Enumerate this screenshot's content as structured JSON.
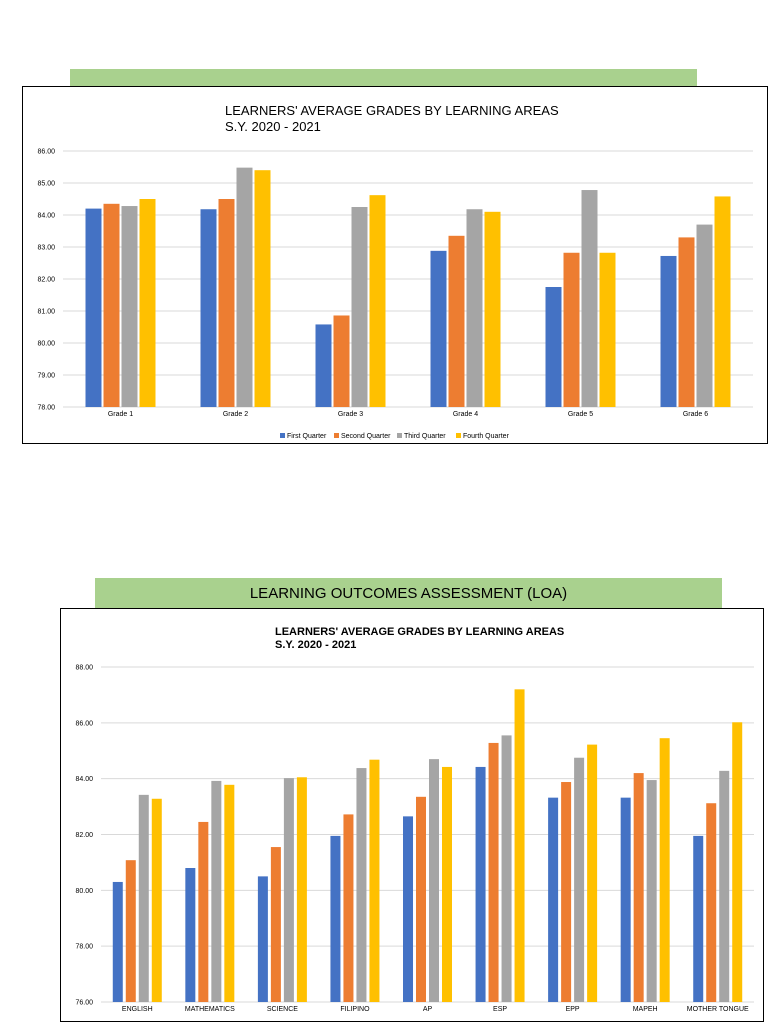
{
  "colors": {
    "first": "#4472c4",
    "second": "#ed7d31",
    "third": "#a5a5a5",
    "fourth": "#ffc000",
    "band": "#a9d18e",
    "grid": "#d9d9d9"
  },
  "section2_header": "LEARNING OUTCOMES ASSESSMENT (LOA)",
  "chart_data": [
    {
      "type": "bar",
      "title": "LEARNERS' AVERAGE GRADES BY LEARNING AREAS",
      "subtitle": "S.Y. 2020 - 2021",
      "categories": [
        "Grade 1",
        "Grade 2",
        "Grade 3",
        "Grade 4",
        "Grade 5",
        "Grade 6"
      ],
      "ylim": [
        78,
        86
      ],
      "yticks": [
        "78.00",
        "79.00",
        "80.00",
        "81.00",
        "82.00",
        "83.00",
        "84.00",
        "85.00",
        "86.00"
      ],
      "grid": true,
      "legend": "bottom",
      "series": [
        {
          "name": "First Quarter",
          "values": [
            84.2,
            84.18,
            80.58,
            82.88,
            81.75,
            82.72
          ]
        },
        {
          "name": "Second Quarter",
          "values": [
            84.35,
            84.5,
            80.86,
            83.35,
            82.82,
            83.3
          ]
        },
        {
          "name": "Third Quarter",
          "values": [
            84.28,
            85.48,
            84.25,
            84.18,
            84.78,
            83.7
          ]
        },
        {
          "name": "Fourth Quarter",
          "values": [
            84.5,
            85.4,
            84.62,
            84.1,
            82.82,
            84.58
          ]
        }
      ]
    },
    {
      "type": "bar",
      "title": "LEARNERS' AVERAGE GRADES BY LEARNING AREAS",
      "subtitle": "S.Y. 2020 - 2021",
      "categories": [
        "ENGLISH",
        "MATHEMATICS",
        "SCIENCE",
        "FILIPINO",
        "AP",
        "ESP",
        "EPP",
        "MAPEH",
        "MOTHER TONGUE"
      ],
      "ylim": [
        76,
        88
      ],
      "yticks": [
        "76.00",
        "78.00",
        "80.00",
        "82.00",
        "84.00",
        "86.00",
        "88.00"
      ],
      "grid": true,
      "legend": "none",
      "series": [
        {
          "name": "First Quarter",
          "values": [
            80.3,
            80.8,
            80.5,
            81.95,
            82.65,
            84.42,
            83.32,
            83.32,
            81.95
          ]
        },
        {
          "name": "Second Quarter",
          "values": [
            81.08,
            82.45,
            81.55,
            82.72,
            83.35,
            85.28,
            83.88,
            84.2,
            83.12
          ]
        },
        {
          "name": "Third Quarter",
          "values": [
            83.42,
            83.92,
            84.02,
            84.38,
            84.7,
            85.55,
            84.75,
            83.95,
            84.28
          ]
        },
        {
          "name": "Fourth Quarter",
          "values": [
            83.28,
            83.78,
            84.05,
            84.68,
            84.42,
            87.2,
            85.22,
            85.45,
            86.02
          ]
        }
      ]
    }
  ]
}
